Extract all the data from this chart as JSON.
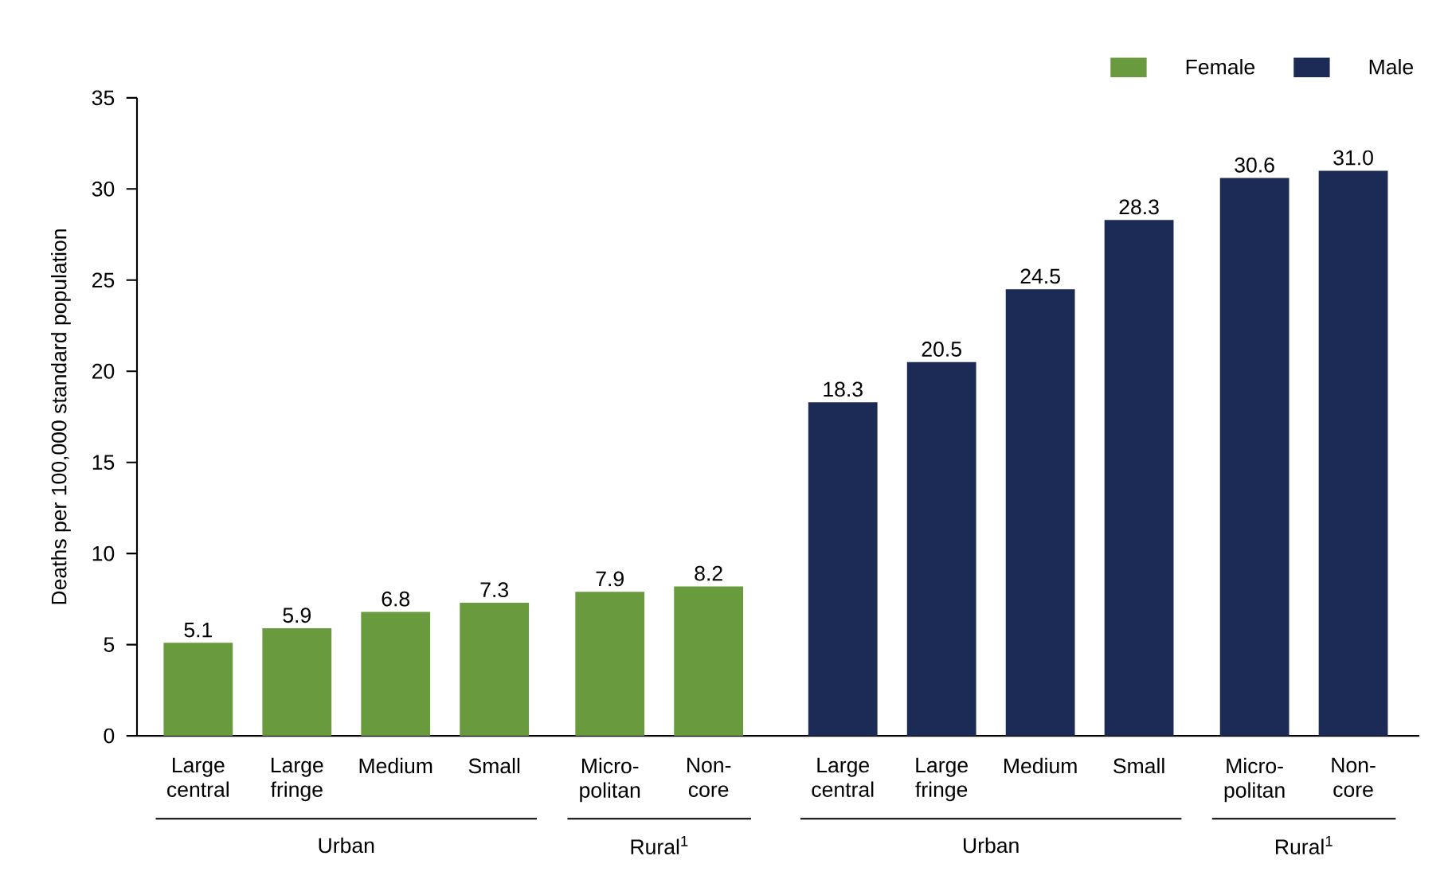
{
  "chart_data": {
    "type": "bar",
    "ylabel": "Deaths per 100,000 standard population",
    "categories": [
      "Large central",
      "Large fringe",
      "Medium",
      "Small",
      "Micro-politan",
      "Non-core",
      "Large central",
      "Large fringe",
      "Medium",
      "Small",
      "Micro-politan",
      "Non-core"
    ],
    "series": [
      {
        "name": "Female",
        "color": "#6a9a3e",
        "values": [
          5.1,
          5.9,
          6.8,
          7.3,
          7.9,
          8.2,
          null,
          null,
          null,
          null,
          null,
          null
        ],
        "value_labels": [
          "5.1",
          "5.9",
          "6.8",
          "7.3",
          "7.9",
          "8.2",
          null,
          null,
          null,
          null,
          null,
          null
        ]
      },
      {
        "name": "Male",
        "color": "#1c2a56",
        "values": [
          null,
          null,
          null,
          null,
          null,
          null,
          18.3,
          20.5,
          24.5,
          28.3,
          30.6,
          31.0
        ],
        "value_labels": [
          null,
          null,
          null,
          null,
          null,
          null,
          "18.3",
          "20.5",
          "24.5",
          "28.3",
          "30.6",
          "31.0"
        ]
      }
    ],
    "ylim": [
      0,
      35
    ],
    "yticks": [
      0,
      5,
      10,
      15,
      20,
      25,
      30,
      35
    ],
    "legend": "top right",
    "annotations": [
      "Urban",
      "Rural$^{1}$",
      "Urban",
      "Rural$^{1}$"
    ]
  }
}
